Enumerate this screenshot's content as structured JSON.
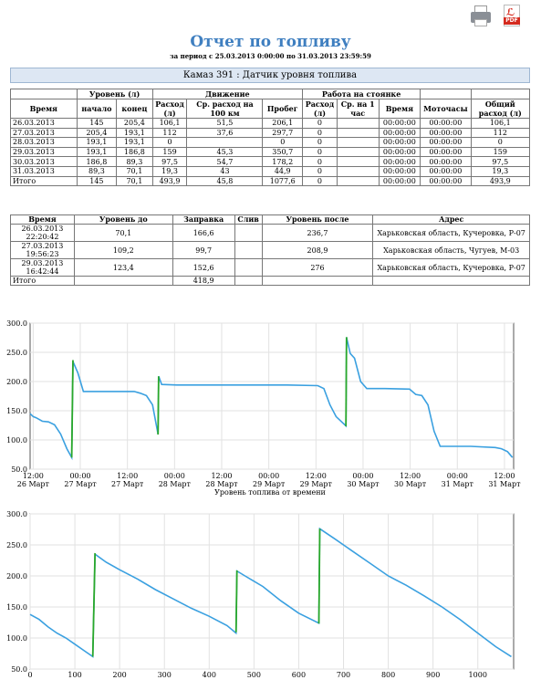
{
  "toolbar": {
    "print_icon": "printer-icon",
    "pdf_icon": "pdf-icon",
    "pdf_label": "PDF"
  },
  "report": {
    "title": "Отчет по топливу",
    "period": "за период с 25.03.2013 0:00:00 по 31.03.2013 23:59:59",
    "vehicle": "Камаз 391 : Датчик уровня топлива"
  },
  "summary_table": {
    "group_headers": {
      "level": "Уровень (л)",
      "movement": "Движение",
      "parking": "Работа на стоянке"
    },
    "headers": {
      "time": "Время",
      "start": "начало",
      "end": "конец",
      "consumption": "Расход (л)",
      "avg_consumption": "Ср. расход на 100 км",
      "mileage": "Пробег",
      "parking_consumption": "Расход (л)",
      "avg_hour": "Ср. на 1 час",
      "parking_time": "Время",
      "engine_hours": "Моточасы",
      "total": "Общий расход (л)"
    },
    "rows": [
      [
        "26.03.2013",
        "145",
        "205,4",
        "106,1",
        "51,5",
        "206,1",
        "0",
        "",
        "00:00:00",
        "00:00:00",
        "106,1"
      ],
      [
        "27.03.2013",
        "205,4",
        "193,1",
        "112",
        "37,6",
        "297,7",
        "0",
        "",
        "00:00:00",
        "00:00:00",
        "112"
      ],
      [
        "28.03.2013",
        "193,1",
        "193,1",
        "0",
        "",
        "0",
        "0",
        "",
        "00:00:00",
        "00:00:00",
        "0"
      ],
      [
        "29.03.2013",
        "193,1",
        "186,8",
        "159",
        "45,3",
        "350,7",
        "0",
        "",
        "00:00:00",
        "00:00:00",
        "159"
      ],
      [
        "30.03.2013",
        "186,8",
        "89,3",
        "97,5",
        "54,7",
        "178,2",
        "0",
        "",
        "00:00:00",
        "00:00:00",
        "97,5"
      ],
      [
        "31.03.2013",
        "89,3",
        "70,1",
        "19,3",
        "43",
        "44,9",
        "0",
        "",
        "00:00:00",
        "00:00:00",
        "19,3"
      ],
      [
        "Итого",
        "145",
        "70,1",
        "493,9",
        "45,8",
        "1077,6",
        "0",
        "",
        "00:00:00",
        "00:00:00",
        "493,9"
      ]
    ]
  },
  "refuel_table": {
    "headers": {
      "time": "Время",
      "level_before": "Уровень до",
      "refuel": "Заправка",
      "drain": "Слив",
      "level_after": "Уровень после",
      "address": "Адрес"
    },
    "rows": [
      {
        "date": "26.03.2013",
        "clock": "22:20:42",
        "level_before": "70,1",
        "refuel": "166,6",
        "drain": "",
        "level_after": "236,7",
        "address": "Харьковская область, Кучеровка, Р-07"
      },
      {
        "date": "27.03.2013",
        "clock": "19:56:23",
        "level_before": "109,2",
        "refuel": "99,7",
        "drain": "",
        "level_after": "208,9",
        "address": "Харьковская область, Чугуев, М-03"
      },
      {
        "date": "29.03.2013",
        "clock": "16:42:44",
        "level_before": "123,4",
        "refuel": "152,6",
        "drain": "",
        "level_after": "276",
        "address": "Харьковская область, Кучеровка, Р-07"
      }
    ],
    "total_label": "Итого",
    "total_refuel": "418,9"
  },
  "chart_data": [
    {
      "type": "line",
      "title": "",
      "xlabel": "Уровень топлива от времени",
      "ylabel": "",
      "ylim": [
        50,
        300
      ],
      "yticks": [
        "50.0",
        "100.0",
        "150.0",
        "200.0",
        "250.0",
        "300.0"
      ],
      "xtick_labels": [
        [
          "12:00",
          "26 Март"
        ],
        [
          "00:00",
          "27 Март"
        ],
        [
          "12:00",
          "27 Март"
        ],
        [
          "00:00",
          "28 Март"
        ],
        [
          "12:00",
          "28 Март"
        ],
        [
          "00:00",
          "29 Март"
        ],
        [
          "12:00",
          "29 Март"
        ],
        [
          "00:00",
          "30 Март"
        ],
        [
          "12:00",
          "30 Март"
        ],
        [
          "00:00",
          "31 Март"
        ],
        [
          "12:00",
          "31 Март"
        ]
      ],
      "grid": true,
      "series": [
        {
          "kind": "level",
          "color": "#3aa0e0",
          "points": [
            [
              0,
              145
            ],
            [
              0.5,
              140
            ],
            [
              1,
              138
            ],
            [
              2,
              132
            ],
            [
              3,
              131
            ],
            [
              4,
              126
            ],
            [
              5,
              110
            ],
            [
              6,
              85
            ],
            [
              6.8,
              70
            ],
            [
              7,
              234
            ],
            [
              7.8,
              215
            ],
            [
              8.7,
              183
            ],
            [
              10,
              183
            ],
            [
              14,
              183
            ],
            [
              17,
              183
            ],
            [
              18,
              180
            ],
            [
              19,
              176
            ],
            [
              20,
              160
            ],
            [
              20.9,
              110
            ],
            [
              21,
              209
            ],
            [
              21.5,
              195
            ],
            [
              24,
              194
            ],
            [
              30,
              194
            ],
            [
              36,
              194
            ],
            [
              42,
              194
            ],
            [
              47,
              193
            ],
            [
              48,
              188
            ],
            [
              49,
              160
            ],
            [
              50,
              140
            ],
            [
              51.6,
              124
            ],
            [
              51.7,
              276
            ],
            [
              52.3,
              248
            ],
            [
              53,
              240
            ],
            [
              54,
              200
            ],
            [
              55,
              188
            ],
            [
              58,
              188
            ],
            [
              62,
              187
            ],
            [
              63,
              178
            ],
            [
              64,
              176
            ],
            [
              65,
              160
            ],
            [
              66,
              115
            ],
            [
              67,
              89
            ],
            [
              72,
              89
            ],
            [
              76,
              87
            ],
            [
              77,
              85
            ],
            [
              78,
              80
            ],
            [
              78.8,
              70
            ]
          ]
        },
        {
          "kind": "refuel",
          "color": "#2aa82a",
          "segments": [
            [
              [
                6.8,
                70
              ],
              [
                7,
                236.7
              ]
            ],
            [
              [
                20.9,
                109.2
              ],
              [
                21,
                208.9
              ]
            ],
            [
              [
                51.6,
                123.4
              ],
              [
                51.7,
                276
              ]
            ]
          ]
        }
      ]
    },
    {
      "type": "line",
      "title": "",
      "xlabel": "",
      "ylabel": "",
      "xlim": [
        0,
        1080
      ],
      "ylim": [
        50,
        300
      ],
      "yticks": [
        "50.0",
        "100.0",
        "150.0",
        "200.0",
        "250.0",
        "300.0"
      ],
      "xticks": [
        0,
        100,
        200,
        300,
        400,
        500,
        600,
        700,
        800,
        900,
        1000
      ],
      "grid": true,
      "series": [
        {
          "kind": "level",
          "color": "#3aa0e0",
          "points": [
            [
              0,
              138
            ],
            [
              20,
              130
            ],
            [
              40,
              118
            ],
            [
              60,
              108
            ],
            [
              80,
              100
            ],
            [
              100,
              90
            ],
            [
              120,
              80
            ],
            [
              140,
              70
            ],
            [
              145,
              235
            ],
            [
              170,
              222
            ],
            [
              200,
              210
            ],
            [
              240,
              195
            ],
            [
              280,
              178
            ],
            [
              320,
              163
            ],
            [
              360,
              148
            ],
            [
              400,
              135
            ],
            [
              440,
              120
            ],
            [
              460,
              108
            ],
            [
              462,
              208
            ],
            [
              480,
              200
            ],
            [
              520,
              183
            ],
            [
              560,
              160
            ],
            [
              600,
              140
            ],
            [
              645,
              124
            ],
            [
              647,
              276
            ],
            [
              680,
              260
            ],
            [
              720,
              240
            ],
            [
              760,
              220
            ],
            [
              800,
              200
            ],
            [
              840,
              185
            ],
            [
              880,
              168
            ],
            [
              920,
              150
            ],
            [
              960,
              130
            ],
            [
              1000,
              108
            ],
            [
              1040,
              86
            ],
            [
              1075,
              70
            ]
          ]
        },
        {
          "kind": "refuel",
          "color": "#2aa82a",
          "segments": [
            [
              [
                140,
                70
              ],
              [
                145,
                236.7
              ]
            ],
            [
              [
                460,
                109.2
              ],
              [
                462,
                208.9
              ]
            ],
            [
              [
                645,
                123.4
              ],
              [
                647,
                276
              ]
            ]
          ]
        }
      ]
    }
  ]
}
